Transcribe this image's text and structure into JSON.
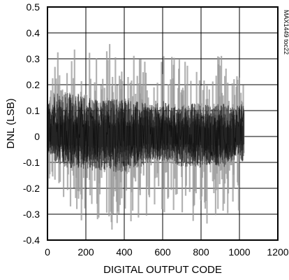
{
  "chart_data": {
    "type": "line",
    "title": "",
    "xlabel": "DIGITAL OUTPUT CODE",
    "ylabel": "DNL (LSB)",
    "xlim": [
      0,
      1200
    ],
    "ylim": [
      -0.4,
      0.5
    ],
    "x_ticks": [
      "0",
      "200",
      "400",
      "600",
      "800",
      "1000",
      "1200"
    ],
    "y_ticks": [
      "0.5",
      "0.4",
      "0.3",
      "0.2",
      "0.1",
      "0",
      "-0.1",
      "-0.2",
      "-0.3",
      "-0.4"
    ],
    "grid": true,
    "legend": "none",
    "watermark": "MAX1449 toc22",
    "series": [
      {
        "code_range": [
          0,
          1023
        ],
        "envelope": {
          "code": [
            0,
            50,
            100,
            150,
            200,
            250,
            300,
            350,
            400,
            450,
            500,
            550,
            600,
            650,
            700,
            750,
            800,
            850,
            900,
            950,
            1000,
            1023
          ],
          "max": [
            0.24,
            0.34,
            0.38,
            0.33,
            0.34,
            0.35,
            0.38,
            0.37,
            0.36,
            0.33,
            0.3,
            0.25,
            0.37,
            0.33,
            0.32,
            0.3,
            0.3,
            0.21,
            0.35,
            0.22,
            0.29,
            0.21
          ],
          "min": [
            -0.2,
            -0.22,
            -0.28,
            -0.32,
            -0.33,
            -0.33,
            -0.33,
            -0.38,
            -0.34,
            -0.33,
            -0.32,
            -0.31,
            -0.32,
            -0.3,
            -0.34,
            -0.34,
            -0.35,
            -0.33,
            -0.29,
            -0.37,
            -0.3,
            -0.2
          ],
          "core_max": [
            0.13,
            0.18,
            0.17,
            0.17,
            0.15,
            0.15,
            0.14,
            0.15,
            0.15,
            0.14,
            0.13,
            0.12,
            0.14,
            0.12,
            0.12,
            0.13,
            0.13,
            0.12,
            0.13,
            0.12,
            0.13,
            0.12
          ],
          "core_min": [
            -0.06,
            -0.11,
            -0.13,
            -0.12,
            -0.13,
            -0.14,
            -0.13,
            -0.14,
            -0.14,
            -0.12,
            -0.12,
            -0.1,
            -0.1,
            -0.1,
            -0.12,
            -0.12,
            -0.12,
            -0.11,
            -0.13,
            -0.1,
            -0.1,
            -0.11
          ]
        }
      }
    ]
  }
}
